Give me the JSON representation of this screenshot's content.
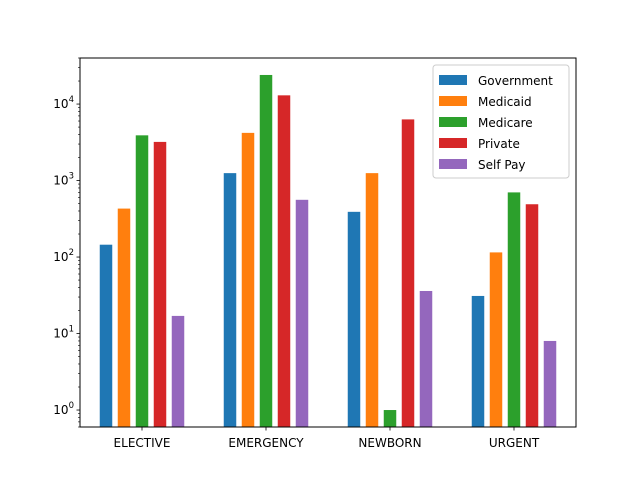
{
  "chart_data": {
    "type": "bar",
    "title": "",
    "xlabel": "",
    "ylabel": "",
    "yscale": "log",
    "ylim": [
      0.6,
      40000
    ],
    "categories": [
      "ELECTIVE",
      "EMERGENCY",
      "NEWBORN",
      "URGENT"
    ],
    "series": [
      {
        "name": "Government",
        "color": "#1f77b4",
        "values": [
          145,
          1250,
          390,
          31
        ]
      },
      {
        "name": "Medicaid",
        "color": "#ff7f0e",
        "values": [
          430,
          4200,
          1250,
          115
        ]
      },
      {
        "name": "Medicare",
        "color": "#2ca02c",
        "values": [
          3900,
          24000,
          1,
          700
        ]
      },
      {
        "name": "Private",
        "color": "#d62728",
        "values": [
          3200,
          13000,
          6300,
          490
        ]
      },
      {
        "name": "Self Pay",
        "color": "#9467bd",
        "values": [
          17,
          560,
          36,
          8
        ]
      }
    ],
    "yticks": [
      {
        "base": "10",
        "exp": "0",
        "value": 1
      },
      {
        "base": "10",
        "exp": "1",
        "value": 10
      },
      {
        "base": "10",
        "exp": "2",
        "value": 100
      },
      {
        "base": "10",
        "exp": "3",
        "value": 1000
      },
      {
        "base": "10",
        "exp": "4",
        "value": 10000
      }
    ],
    "legend_position": "top-right",
    "grid": false
  }
}
